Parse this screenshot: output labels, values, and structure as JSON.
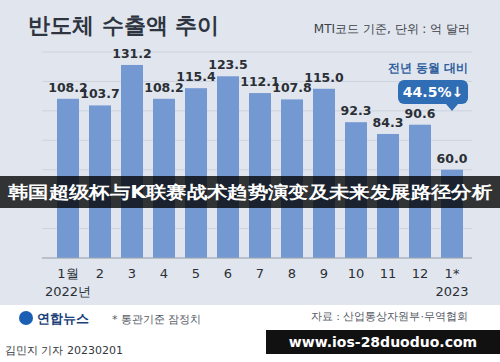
{
  "chart_data": {
    "type": "bar",
    "title": "반도체 수출액 추이",
    "subtitle": "MTI코드 기준, 단위 : 억 달러",
    "categories": [
      "1월",
      "2",
      "3",
      "4",
      "5",
      "6",
      "7",
      "8",
      "9",
      "10",
      "11",
      "12",
      "1*"
    ],
    "period_labels": [
      "2022년",
      "2023"
    ],
    "values": [
      108.2,
      103.7,
      131.2,
      108.2,
      115.4,
      123.5,
      112.1,
      107.8,
      115.0,
      92.3,
      84.3,
      90.6,
      60.0
    ],
    "value_labels": [
      "108.2",
      "103.7",
      "131.2",
      "108.2",
      "115.4",
      "123.5",
      "112.1",
      "107.8",
      "115.0",
      "92.3",
      "84.3",
      "90.6",
      "60.0"
    ],
    "color": "#7499d2",
    "ylim": [
      0,
      140
    ],
    "yticks": [
      0,
      20,
      40,
      60,
      80,
      100,
      120,
      140
    ],
    "grid": true,
    "tick_labels": "x",
    "data_labels": true,
    "annotations": [
      "전년 동월 대비",
      "44.5%↓"
    ],
    "banner": "韩国超级杯与K联赛战术趋势演变及未来发展路径分析",
    "logo": "연합뉴스",
    "note": "* 통관기준 잠정치",
    "source": "자료 : 산업통상자원부·무역협회",
    "credit": "김민지 기자 20230201",
    "watermark": "www.ios-28duoduo.com"
  }
}
